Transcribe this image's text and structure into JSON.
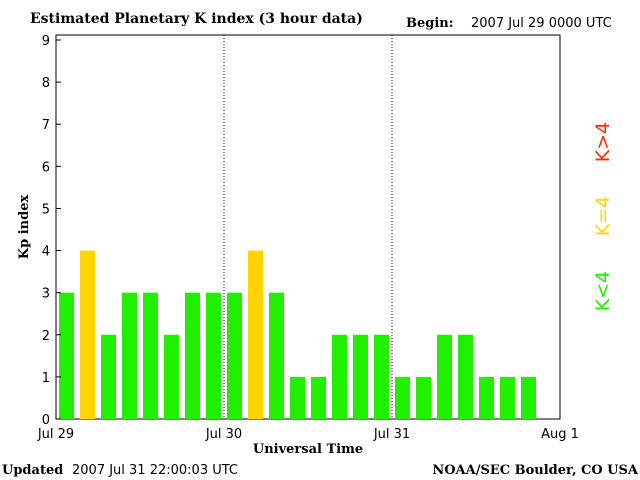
{
  "header": {
    "title": "Estimated Planetary K index (3 hour data)",
    "begin_label": "Begin:",
    "begin_value": "2007 Jul 29 0000 UTC"
  },
  "footer": {
    "updated_label": "Updated",
    "updated_value": "2007 Jul 31 22:00:03 UTC",
    "source": "NOAA/SEC Boulder, CO USA"
  },
  "legend": [
    {
      "label": "K>4",
      "color": "#ff2a00"
    },
    {
      "label": "K=4",
      "color": "#ffd400"
    },
    {
      "label": "K<4",
      "color": "#22ee00"
    }
  ],
  "colors": {
    "below4": "#22ee00",
    "equal4": "#ffd400",
    "above4": "#ff2a00"
  },
  "chart_data": {
    "type": "bar",
    "title": "Estimated Planetary K index (3 hour data)",
    "xlabel": "Universal Time",
    "ylabel": "Kp index",
    "ylim": [
      0,
      9
    ],
    "yticks": [
      0,
      1,
      2,
      3,
      4,
      5,
      6,
      7,
      8,
      9
    ],
    "x_day_labels": [
      "Jul 29",
      "Jul 30",
      "Jul 31",
      "Aug 1"
    ],
    "values": [
      3,
      4,
      2,
      3,
      3,
      2,
      3,
      3,
      3,
      4,
      3,
      1,
      1,
      2,
      2,
      2,
      1,
      1,
      2,
      2,
      1,
      1,
      1
    ],
    "grid": false,
    "day_separators": "dotted vertical lines at day boundaries",
    "legend_position": "right"
  }
}
